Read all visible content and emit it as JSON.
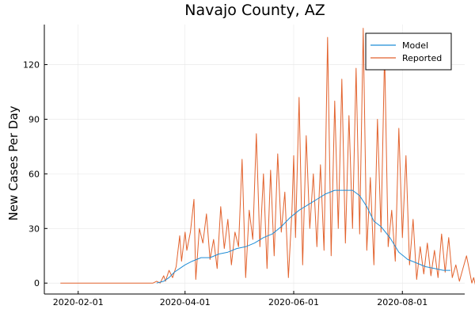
{
  "chart_data": {
    "type": "line",
    "title": "Navajo County, AZ",
    "xlabel": "",
    "ylabel": "New Cases Per Day",
    "x_type": "date",
    "xlim": [
      "2020-01-13",
      "2020-09-05"
    ],
    "ylim": [
      -6,
      142
    ],
    "x_ticks": [
      {
        "value": "2020-02-01",
        "label": "2020-02-01"
      },
      {
        "value": "2020-04-01",
        "label": "2020-04-01"
      },
      {
        "value": "2020-06-01",
        "label": "2020-06-01"
      },
      {
        "value": "2020-08-01",
        "label": "2020-08-01"
      }
    ],
    "y_ticks": [
      0,
      30,
      60,
      90,
      120
    ],
    "grid": true,
    "legend_position": "top-right",
    "series": [
      {
        "name": "Model",
        "color": "#1f8dd6",
        "points": [
          [
            "2020-03-16",
            0
          ],
          [
            "2020-03-20",
            1
          ],
          [
            "2020-03-23",
            3
          ],
          [
            "2020-03-26",
            6
          ],
          [
            "2020-03-29",
            8
          ],
          [
            "2020-04-01",
            10
          ],
          [
            "2020-04-05",
            12
          ],
          [
            "2020-04-10",
            14
          ],
          [
            "2020-04-15",
            14
          ],
          [
            "2020-04-20",
            16
          ],
          [
            "2020-04-25",
            17
          ],
          [
            "2020-04-30",
            19
          ],
          [
            "2020-05-05",
            20
          ],
          [
            "2020-05-10",
            22
          ],
          [
            "2020-05-15",
            25
          ],
          [
            "2020-05-20",
            27
          ],
          [
            "2020-05-25",
            31
          ],
          [
            "2020-05-30",
            36
          ],
          [
            "2020-06-04",
            40
          ],
          [
            "2020-06-09",
            43
          ],
          [
            "2020-06-14",
            46
          ],
          [
            "2020-06-19",
            49
          ],
          [
            "2020-06-24",
            51
          ],
          [
            "2020-06-29",
            51
          ],
          [
            "2020-07-04",
            51
          ],
          [
            "2020-07-08",
            48
          ],
          [
            "2020-07-12",
            42
          ],
          [
            "2020-07-16",
            34
          ],
          [
            "2020-07-20",
            31
          ],
          [
            "2020-07-25",
            25
          ],
          [
            "2020-07-30",
            17
          ],
          [
            "2020-08-04",
            13
          ],
          [
            "2020-08-09",
            11
          ],
          [
            "2020-08-14",
            9
          ],
          [
            "2020-08-19",
            8
          ],
          [
            "2020-08-24",
            7
          ],
          [
            "2020-08-28",
            7
          ]
        ]
      },
      {
        "name": "Reported",
        "color": "#e2622d",
        "points": [
          [
            "2020-01-22",
            0
          ],
          [
            "2020-03-14",
            0
          ],
          [
            "2020-03-16",
            1
          ],
          [
            "2020-03-18",
            0
          ],
          [
            "2020-03-20",
            4
          ],
          [
            "2020-03-21",
            1
          ],
          [
            "2020-03-23",
            7
          ],
          [
            "2020-03-25",
            3
          ],
          [
            "2020-03-27",
            9
          ],
          [
            "2020-03-29",
            26
          ],
          [
            "2020-03-30",
            12
          ],
          [
            "2020-04-01",
            28
          ],
          [
            "2020-04-02",
            18
          ],
          [
            "2020-04-04",
            28
          ],
          [
            "2020-04-06",
            46
          ],
          [
            "2020-04-07",
            2
          ],
          [
            "2020-04-09",
            30
          ],
          [
            "2020-04-11",
            22
          ],
          [
            "2020-04-13",
            38
          ],
          [
            "2020-04-15",
            13
          ],
          [
            "2020-04-17",
            24
          ],
          [
            "2020-04-19",
            8
          ],
          [
            "2020-04-21",
            42
          ],
          [
            "2020-04-23",
            19
          ],
          [
            "2020-04-25",
            35
          ],
          [
            "2020-04-27",
            10
          ],
          [
            "2020-04-29",
            28
          ],
          [
            "2020-05-01",
            20
          ],
          [
            "2020-05-03",
            68
          ],
          [
            "2020-05-05",
            3
          ],
          [
            "2020-05-07",
            40
          ],
          [
            "2020-05-09",
            24
          ],
          [
            "2020-05-11",
            82
          ],
          [
            "2020-05-13",
            20
          ],
          [
            "2020-05-15",
            60
          ],
          [
            "2020-05-17",
            8
          ],
          [
            "2020-05-19",
            62
          ],
          [
            "2020-05-21",
            15
          ],
          [
            "2020-05-23",
            71
          ],
          [
            "2020-05-25",
            28
          ],
          [
            "2020-05-27",
            50
          ],
          [
            "2020-05-29",
            3
          ],
          [
            "2020-05-31",
            40
          ],
          [
            "2020-06-01",
            70
          ],
          [
            "2020-06-02",
            25
          ],
          [
            "2020-06-04",
            102
          ],
          [
            "2020-06-06",
            10
          ],
          [
            "2020-06-08",
            81
          ],
          [
            "2020-06-10",
            30
          ],
          [
            "2020-06-12",
            60
          ],
          [
            "2020-06-14",
            20
          ],
          [
            "2020-06-16",
            65
          ],
          [
            "2020-06-18",
            18
          ],
          [
            "2020-06-20",
            135
          ],
          [
            "2020-06-22",
            15
          ],
          [
            "2020-06-24",
            100
          ],
          [
            "2020-06-26",
            30
          ],
          [
            "2020-06-28",
            112
          ],
          [
            "2020-06-30",
            22
          ],
          [
            "2020-07-02",
            92
          ],
          [
            "2020-07-04",
            30
          ],
          [
            "2020-07-06",
            118
          ],
          [
            "2020-07-08",
            27
          ],
          [
            "2020-07-10",
            140
          ],
          [
            "2020-07-12",
            18
          ],
          [
            "2020-07-14",
            58
          ],
          [
            "2020-07-16",
            10
          ],
          [
            "2020-07-18",
            90
          ],
          [
            "2020-07-20",
            28
          ],
          [
            "2020-07-22",
            127
          ],
          [
            "2020-07-24",
            20
          ],
          [
            "2020-07-26",
            40
          ],
          [
            "2020-07-28",
            12
          ],
          [
            "2020-07-30",
            85
          ],
          [
            "2020-08-01",
            25
          ],
          [
            "2020-08-03",
            70
          ],
          [
            "2020-08-05",
            10
          ],
          [
            "2020-08-07",
            35
          ],
          [
            "2020-08-09",
            2
          ],
          [
            "2020-08-11",
            20
          ],
          [
            "2020-08-13",
            5
          ],
          [
            "2020-08-15",
            22
          ],
          [
            "2020-08-17",
            4
          ],
          [
            "2020-08-19",
            18
          ],
          [
            "2020-08-21",
            3
          ],
          [
            "2020-08-23",
            27
          ],
          [
            "2020-08-25",
            6
          ],
          [
            "2020-08-27",
            25
          ],
          [
            "2020-08-29",
            3
          ],
          [
            "2020-08-31",
            10
          ],
          [
            "2020-09-02",
            1
          ],
          [
            "2020-09-04",
            8
          ],
          [
            "2020-09-06",
            15
          ],
          [
            "2020-09-08",
            5
          ],
          [
            "2020-09-09",
            0
          ],
          [
            "2020-09-10",
            3
          ],
          [
            "2020-09-11",
            -1
          ]
        ]
      }
    ]
  }
}
